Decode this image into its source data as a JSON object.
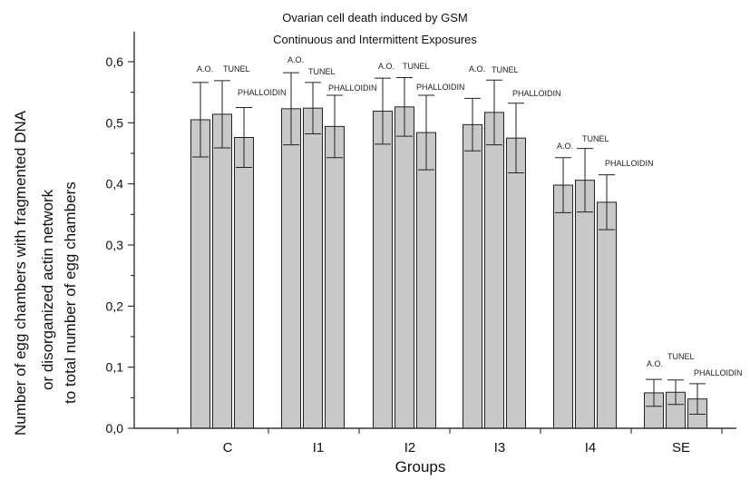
{
  "chart_data": {
    "type": "bar",
    "title_lines": [
      "Ovarian cell death induced by GSM",
      "Continuous and Intermittent Exposures"
    ],
    "xlabel": "Groups",
    "ylabel_lines": [
      "Number of egg chambers with fragmented DNA",
      "or disorganized actin network",
      "to total number of egg chambers"
    ],
    "categories": [
      "C",
      "I1",
      "I2",
      "I3",
      "I4",
      "SE"
    ],
    "series": [
      {
        "name": "A.O.",
        "values": [
          0.505,
          0.523,
          0.519,
          0.497,
          0.398,
          0.058
        ],
        "errors": [
          0.061,
          0.059,
          0.054,
          0.043,
          0.045,
          0.022
        ]
      },
      {
        "name": "TUNEL",
        "values": [
          0.514,
          0.524,
          0.526,
          0.517,
          0.406,
          0.059
        ],
        "errors": [
          0.055,
          0.042,
          0.048,
          0.053,
          0.052,
          0.02
        ]
      },
      {
        "name": "PHALLOIDIN",
        "values": [
          0.476,
          0.494,
          0.484,
          0.475,
          0.37,
          0.048
        ],
        "errors": [
          0.049,
          0.051,
          0.061,
          0.057,
          0.045,
          0.025
        ]
      }
    ],
    "ylim": [
      0,
      0.65
    ],
    "yticks": [
      "0,0",
      "0,1",
      "0,2",
      "0,3",
      "0,4",
      "0,5",
      "0,6"
    ],
    "grid": false,
    "bar_color": "#c8c8c8",
    "edge_color": "#222222"
  }
}
